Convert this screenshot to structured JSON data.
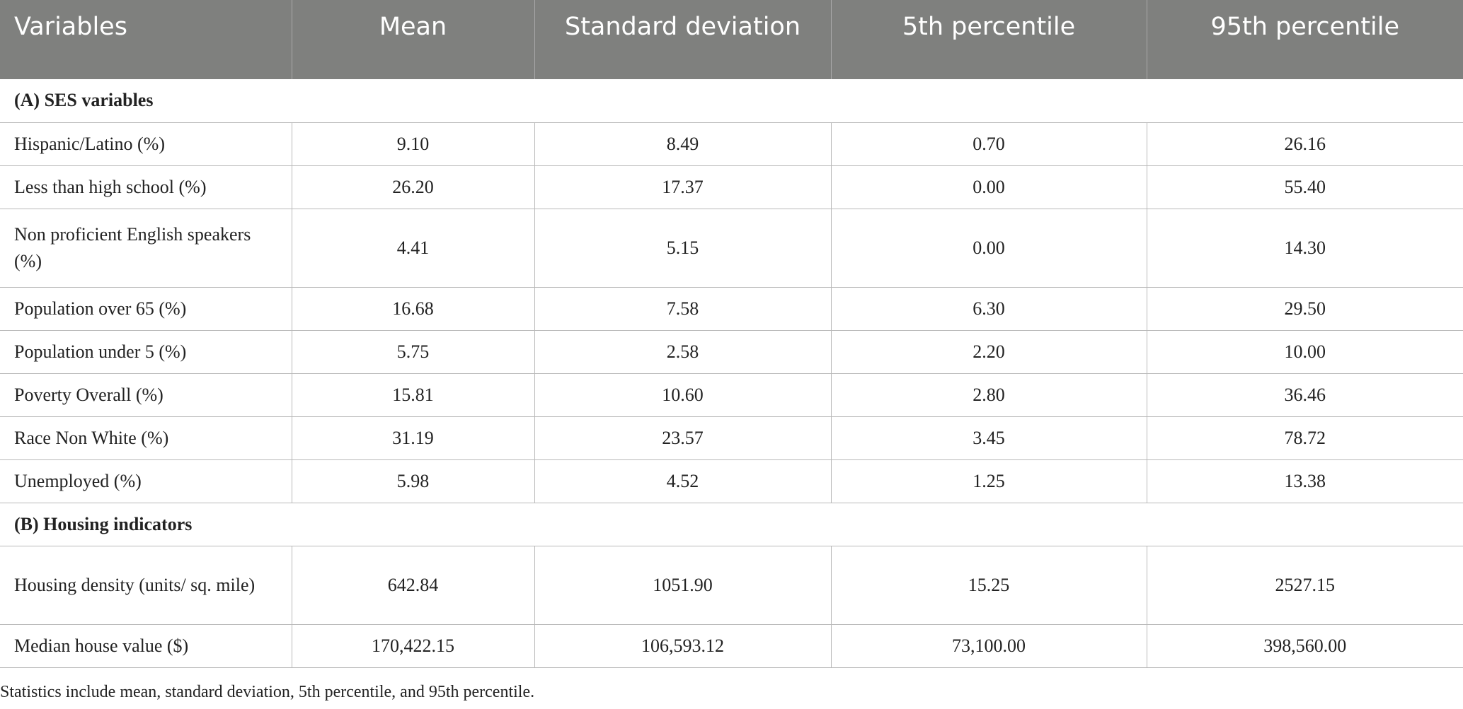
{
  "table": {
    "headers": [
      "Variables",
      "Mean",
      "Standard deviation",
      "5th percentile",
      "95th percentile"
    ],
    "sections": [
      {
        "title": "(A) SES variables",
        "rows": [
          {
            "label": "Hispanic/Latino (%)",
            "mean": "9.10",
            "sd": "8.49",
            "p5": "0.70",
            "p95": "26.16"
          },
          {
            "label": "Less than high school (%)",
            "mean": "26.20",
            "sd": "17.37",
            "p5": "0.00",
            "p95": "55.40"
          },
          {
            "label": "Non proficient English speakers (%)",
            "mean": "4.41",
            "sd": "5.15",
            "p5": "0.00",
            "p95": "14.30"
          },
          {
            "label": "Population over 65 (%)",
            "mean": "16.68",
            "sd": "7.58",
            "p5": "6.30",
            "p95": "29.50"
          },
          {
            "label": "Population under 5 (%)",
            "mean": "5.75",
            "sd": "2.58",
            "p5": "2.20",
            "p95": "10.00"
          },
          {
            "label": "Poverty Overall (%)",
            "mean": "15.81",
            "sd": "10.60",
            "p5": "2.80",
            "p95": "36.46"
          },
          {
            "label": "Race Non White (%)",
            "mean": "31.19",
            "sd": "23.57",
            "p5": "3.45",
            "p95": "78.72"
          },
          {
            "label": "Unemployed (%)",
            "mean": "5.98",
            "sd": "4.52",
            "p5": "1.25",
            "p95": "13.38"
          }
        ]
      },
      {
        "title": "(B) Housing indicators",
        "rows": [
          {
            "label": "Housing density (units/ sq. mile)",
            "mean": "642.84",
            "sd": "1051.90",
            "p5": "15.25",
            "p95": "2527.15"
          },
          {
            "label": "Median house value ($)",
            "mean": "170,422.15",
            "sd": "106,593.12",
            "p5": "73,100.00",
            "p95": "398,560.00"
          }
        ]
      }
    ]
  },
  "footnote": "Statistics include mean, standard deviation, 5th percentile, and 95th percentile.",
  "colors": {
    "header_bg": "#7f807e",
    "header_text": "#ffffff",
    "grid": "#b9b9b9"
  }
}
